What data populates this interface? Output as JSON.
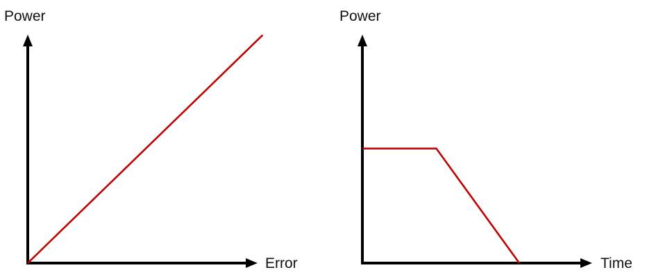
{
  "colors": {
    "axis": "#000000",
    "line": "#c00000",
    "background": "#ffffff"
  },
  "chart_data": [
    {
      "type": "line",
      "title": "",
      "xlabel": "Error",
      "ylabel": "Power",
      "xlim": [
        0,
        1
      ],
      "ylim": [
        0,
        1
      ],
      "grid": false,
      "legend": "none",
      "ticks": "none",
      "series": [
        {
          "x": [
            0,
            0.9
          ],
          "y": [
            0,
            0.9
          ]
        }
      ]
    },
    {
      "type": "line",
      "title": "",
      "xlabel": "Time",
      "ylabel": "Power",
      "xlim": [
        0,
        1
      ],
      "ylim": [
        0,
        1
      ],
      "grid": false,
      "legend": "none",
      "ticks": "none",
      "series": [
        {
          "x": [
            0,
            0.33,
            0.7
          ],
          "y": [
            0.52,
            0.52,
            0
          ]
        }
      ]
    }
  ]
}
